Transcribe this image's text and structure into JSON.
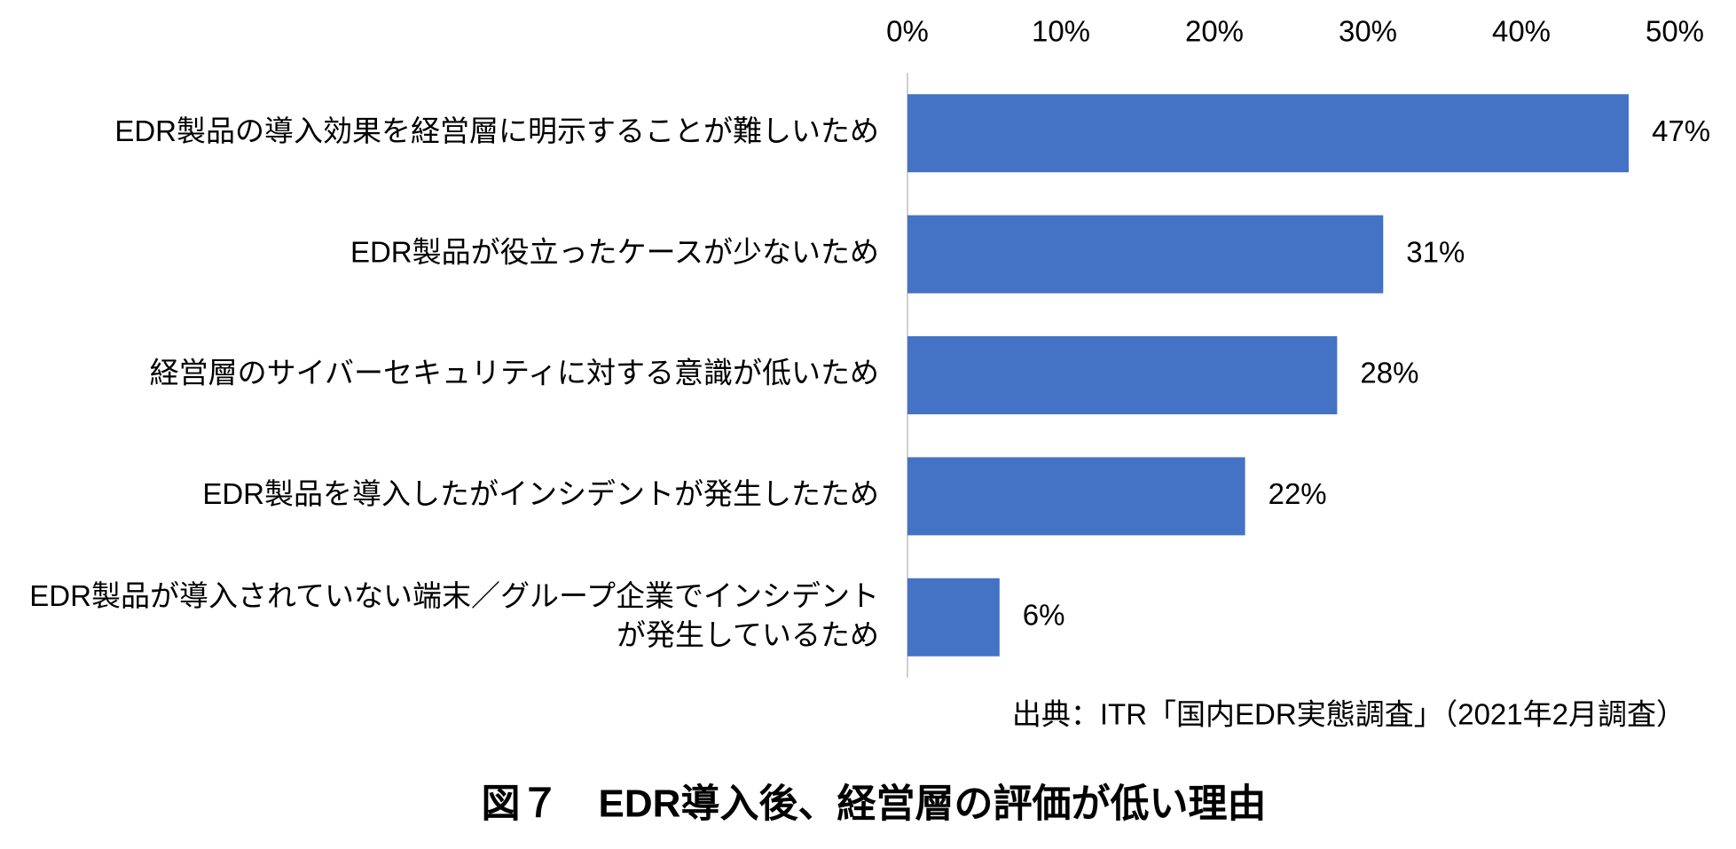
{
  "chart_data": {
    "type": "bar",
    "orientation": "horizontal",
    "title": "図７　EDR導入後、経営層の評価が低い理由",
    "source": "出典：ITR「国内EDR実態調査」（2021年2月調査）",
    "categories": [
      "EDR製品の導入効果を経営層に明示することが難しいため",
      "EDR製品が役立ったケースが少ないため",
      "経営層のサイバーセキュリティに対する意識が低いため",
      "EDR製品を導入したがインシデントが発生したため",
      "EDR製品が導入されていない端末／グループ企業でインシデント\nが発生しているため"
    ],
    "values": [
      47,
      31,
      28,
      22,
      6
    ],
    "value_labels": [
      "47%",
      "31%",
      "28%",
      "22%",
      "6%"
    ],
    "color": "#4472c4",
    "xlim": [
      0,
      50
    ],
    "xticks": [
      {
        "value": 0,
        "label": "0%"
      },
      {
        "value": 10,
        "label": "10%"
      },
      {
        "value": 20,
        "label": "20%"
      },
      {
        "value": 30,
        "label": "30%"
      },
      {
        "value": 40,
        "label": "40%"
      },
      {
        "value": 50,
        "label": "50%"
      }
    ],
    "grid": false
  }
}
